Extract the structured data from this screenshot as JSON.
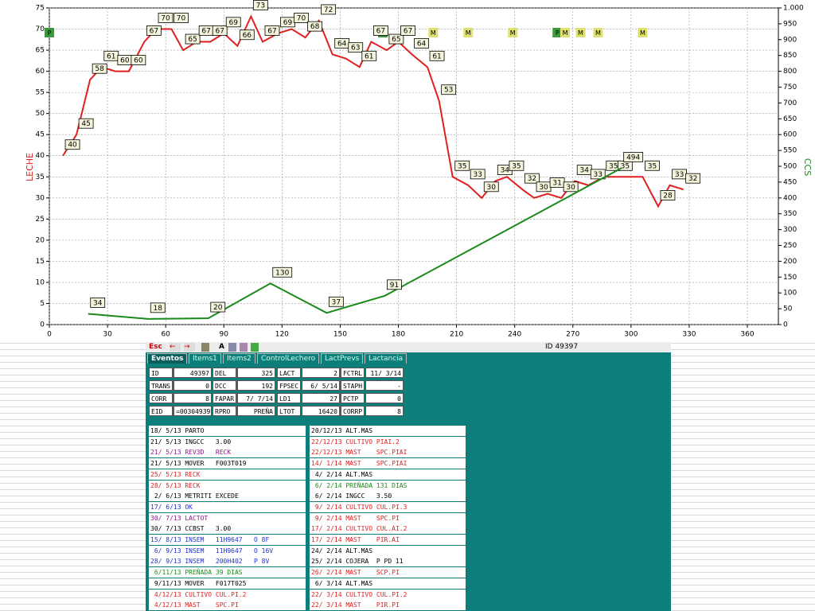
{
  "chart_data": {
    "type": "line",
    "xlim": [
      0,
      376
    ],
    "xticks": [
      0,
      30,
      60,
      90,
      120,
      150,
      180,
      210,
      240,
      270,
      300,
      330,
      360
    ],
    "ylim": [
      0,
      75
    ],
    "yticks": [
      0,
      5,
      10,
      15,
      20,
      25,
      30,
      35,
      40,
      45,
      50,
      55,
      60,
      65,
      70,
      75
    ],
    "y2lim": [
      0,
      1000
    ],
    "y2ticks": [
      0,
      50,
      100,
      150,
      200,
      250,
      300,
      350,
      400,
      450,
      500,
      550,
      600,
      650,
      700,
      750,
      800,
      850,
      900,
      950,
      {
        "value": 1000,
        "label": "1.000"
      }
    ],
    "grid": true,
    "series": [
      {
        "name": "LECHE",
        "color": "#e02020",
        "x": [
          7,
          14,
          21,
          27,
          34,
          41,
          49,
          55,
          63,
          69,
          76,
          83,
          90,
          97,
          104,
          110,
          118,
          125,
          132,
          139,
          146,
          153,
          160,
          166,
          174,
          180,
          187,
          195,
          201,
          208,
          216,
          223,
          230,
          236,
          244,
          250,
          257,
          264,
          271,
          278,
          286,
          292,
          306,
          314,
          320,
          327
        ],
        "values": [
          40,
          45,
          58,
          61,
          60,
          60,
          67,
          70,
          70,
          65,
          67,
          67,
          69,
          66,
          73,
          67,
          69,
          70,
          68,
          72,
          64,
          63,
          61,
          67,
          65,
          67,
          64,
          61,
          53,
          35,
          33,
          30,
          34,
          35,
          32,
          30,
          31,
          30,
          34,
          33,
          35,
          35,
          35,
          28,
          33,
          32
        ]
      },
      {
        "name": "CCS",
        "color": "#1a8a1a",
        "axis": "y2",
        "x": [
          20,
          51,
          82,
          114,
          143,
          173,
          295
        ],
        "values": [
          34,
          18,
          20,
          130,
          37,
          91,
          494
        ]
      }
    ],
    "event_markers": [
      {
        "x": 0,
        "label": "P",
        "color": "#3c9a3c"
      },
      {
        "x": 172,
        "label": "P",
        "color": "#3c9a3c"
      },
      {
        "x": 198,
        "label": "M",
        "color": "#e0e070"
      },
      {
        "x": 216,
        "label": "M",
        "color": "#e0e070"
      },
      {
        "x": 239,
        "label": "M",
        "color": "#e0e070"
      },
      {
        "x": 262,
        "label": "P",
        "color": "#3c9a3c"
      },
      {
        "x": 266,
        "label": "M",
        "color": "#e0e070"
      },
      {
        "x": 274,
        "label": "M",
        "color": "#e0e070"
      },
      {
        "x": 283,
        "label": "M",
        "color": "#e0e070"
      },
      {
        "x": 306,
        "label": "M",
        "color": "#e0e070"
      }
    ]
  },
  "toolbar": {
    "esc": "Esc",
    "id": "ID 49397"
  },
  "tabs": [
    "Eventos",
    "Items1",
    "Items2",
    "ControlLechero",
    "LactPrevs",
    "Lactancia"
  ],
  "fields": [
    [
      [
        "ID",
        "49397"
      ],
      [
        "DEL",
        "325"
      ],
      [
        "LACT",
        "2"
      ],
      [
        "FCTRL",
        "11/ 3/14"
      ]
    ],
    [
      [
        "TRANS",
        "0"
      ],
      [
        "DCC",
        "192"
      ],
      [
        "FPSEC",
        "6/ 5/14"
      ],
      [
        "STAPH",
        "-"
      ]
    ],
    [
      [
        "CORR",
        "8"
      ],
      [
        "FAPAR",
        "7/ 7/14"
      ],
      [
        "LD1",
        "27"
      ],
      [
        "PCTP",
        "0"
      ]
    ],
    [
      [
        "EID",
        "=003049397"
      ],
      [
        "RPRO",
        "PREÑA"
      ],
      [
        "LTOT",
        "16420"
      ],
      [
        "CORRP",
        "8"
      ]
    ]
  ],
  "events_left": [
    {
      "text": "18/ 5/13 PARTO",
      "color": "#000"
    },
    {
      "text": "21/ 5/13 INGCC   3.00",
      "color": "#000"
    },
    {
      "text": "21/ 5/13 REV3D   RECK",
      "color": "#8a1a8a"
    },
    {
      "text": "21/ 5/13 MOVER   F003T019",
      "color": "#000"
    },
    {
      "text": "25/ 5/13 RECK",
      "color": "#e02020"
    },
    {
      "text": "28/ 5/13 RECK",
      "color": "#e02020"
    },
    {
      "text": " 2/ 6/13 METRITI EXCEDE",
      "color": "#000"
    },
    {
      "text": "17/ 6/13 OK",
      "color": "#2030d0"
    },
    {
      "text": "30/ 7/13 LACTOT",
      "color": "#8a1a8a"
    },
    {
      "text": "30/ 7/13 CCBST   3.00",
      "color": "#000"
    },
    {
      "text": "15/ 8/13 INSEM   11H9647   O 8F",
      "color": "#2030d0"
    },
    {
      "text": " 6/ 9/13 INSEM   11H9647   O 16V",
      "color": "#2030d0"
    },
    {
      "text": "28/ 9/13 INSEM   200H402   P 8V",
      "color": "#2030d0"
    },
    {
      "text": " 6/11/13 PREÑADA 39 DIAS",
      "color": "#1a8a1a"
    },
    {
      "text": " 9/11/13 MOVER   F017T025",
      "color": "#000"
    },
    {
      "text": " 4/12/13 CULTIVO CUL.PI.2",
      "color": "#e02020"
    },
    {
      "text": " 4/12/13 MAST    SPC.PI",
      "color": "#e02020"
    }
  ],
  "events_right": [
    {
      "text": "20/12/13 ALT.MAS",
      "color": "#000"
    },
    {
      "text": "22/12/13 CULTIVO PIAI.2",
      "color": "#e02020"
    },
    {
      "text": "22/12/13 MAST    SPC.PIAI",
      "color": "#e02020"
    },
    {
      "text": "14/ 1/14 MAST    SPC.PIAI",
      "color": "#e02020"
    },
    {
      "text": " 4/ 2/14 ALT.MAS",
      "color": "#000"
    },
    {
      "text": " 6/ 2/14 PREÑADA 131 DIAS",
      "color": "#1a8a1a"
    },
    {
      "text": " 6/ 2/14 INGCC   3.50",
      "color": "#000"
    },
    {
      "text": " 9/ 2/14 CULTIVO CUL.PI.3",
      "color": "#e02020"
    },
    {
      "text": " 9/ 2/14 MAST    SPC.PI",
      "color": "#e02020"
    },
    {
      "text": "17/ 2/14 CULTIVO CUL.AI.2",
      "color": "#e02020"
    },
    {
      "text": "17/ 2/14 MAST    PIR.AI",
      "color": "#e02020"
    },
    {
      "text": "24/ 2/14 ALT.MAS",
      "color": "#000"
    },
    {
      "text": "25/ 2/14 COJERA  P PD 11",
      "color": "#000"
    },
    {
      "text": "26/ 2/14 MAST    SCP.PI",
      "color": "#e02020"
    },
    {
      "text": " 6/ 3/14 ALT.MAS",
      "color": "#000"
    },
    {
      "text": "22/ 3/14 CULTIVO CUL.PI.2",
      "color": "#e02020"
    },
    {
      "text": "22/ 3/14 MAST    PIR.PI",
      "color": "#e02020"
    }
  ]
}
